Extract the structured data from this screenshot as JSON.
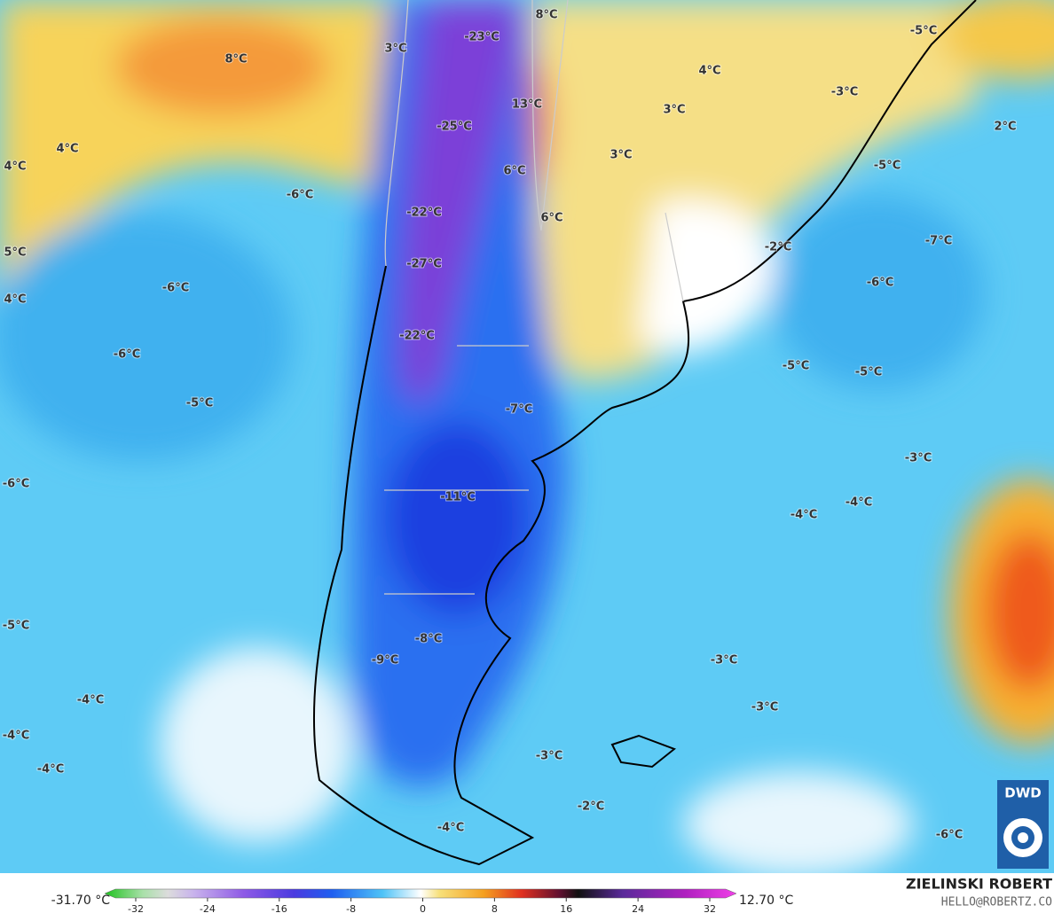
{
  "map": {
    "labels": [
      "8°C",
      "3°C",
      "-23°C",
      "8°C",
      "-5°C",
      "4°C",
      "-3°C",
      "13°C",
      "3°C",
      "-25°C",
      "2°C",
      "4°C",
      "4°C",
      "3°C",
      "6°C",
      "-5°C",
      "-6°C",
      "-22°C",
      "6°C",
      "-7°C",
      "5°C",
      "-27°C",
      "-2°C",
      "-6°C",
      "-6°C",
      "4°C",
      "-22°C",
      "-6°C",
      "-5°C",
      "-5°C",
      "-5°C",
      "-7°C",
      "-3°C",
      "-6°C",
      "-11°C",
      "-4°C",
      "-4°C",
      "-5°C",
      "-8°C",
      "-9°C",
      "-3°C",
      "-3°C",
      "-4°C",
      "-4°C",
      "-4°C",
      "-3°C",
      "-2°C",
      "-4°C",
      "-6°C"
    ],
    "logo": "DWD"
  },
  "colorbar": {
    "min_label": "-31.70 °C",
    "max_label": "12.70 °C",
    "ticks": [
      -32,
      -24,
      -16,
      -8,
      0,
      8,
      16,
      24,
      32
    ]
  },
  "credit": {
    "name": "ZIELINSKI ROBERT",
    "contact": "HELLO@ROBERTZ.CO"
  }
}
